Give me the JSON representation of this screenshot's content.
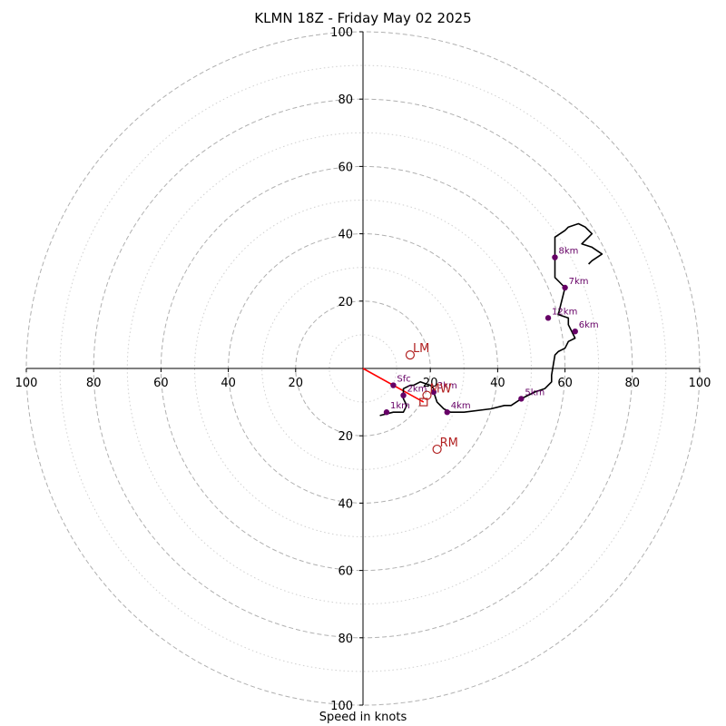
{
  "title": "KLMN 18Z - Friday May 02 2025",
  "caption": "Speed in knots",
  "chart_data": {
    "type": "hodograph",
    "units": "knots",
    "range": 100,
    "solid_rings": [
      20,
      40,
      60,
      80,
      100
    ],
    "dotted_rings": [
      10,
      30,
      50,
      70,
      90
    ],
    "tick_labels": [
      "20",
      "40",
      "60",
      "80",
      "100"
    ],
    "colors": {
      "trace": "#000000",
      "markers": "#660066",
      "motion": "#b22222",
      "shear": "#ff0000",
      "grid": "#b0b0b0"
    },
    "trace": [
      [
        5,
        -14
      ],
      [
        9,
        -13
      ],
      [
        12,
        -13
      ],
      [
        13,
        -11
      ],
      [
        12,
        -9
      ],
      [
        12,
        -6
      ],
      [
        14,
        -5
      ],
      [
        15,
        -5
      ],
      [
        17,
        -4
      ],
      [
        20,
        -5
      ],
      [
        21,
        -6
      ],
      [
        21,
        -7
      ],
      [
        22,
        -10
      ],
      [
        24,
        -12
      ],
      [
        26,
        -13
      ],
      [
        30,
        -13
      ],
      [
        38,
        -12
      ],
      [
        42,
        -11
      ],
      [
        44,
        -11
      ],
      [
        47,
        -9
      ],
      [
        51,
        -7
      ],
      [
        54,
        -6
      ],
      [
        56,
        -4
      ],
      [
        56,
        -2
      ],
      [
        57,
        4
      ],
      [
        58,
        5
      ],
      [
        60,
        6
      ],
      [
        61,
        8
      ],
      [
        63,
        9
      ],
      [
        61,
        13
      ],
      [
        61,
        15
      ],
      [
        58,
        16
      ],
      [
        60,
        24
      ],
      [
        58,
        26
      ],
      [
        57,
        27
      ],
      [
        57,
        32
      ],
      [
        57,
        39
      ],
      [
        60,
        41
      ],
      [
        61,
        42
      ],
      [
        64,
        43
      ],
      [
        66,
        42
      ],
      [
        68,
        40
      ],
      [
        67,
        39
      ],
      [
        65,
        37
      ],
      [
        68,
        36
      ],
      [
        71,
        34
      ],
      [
        68,
        32
      ],
      [
        67,
        31
      ]
    ],
    "height_markers": [
      {
        "label": "Sfc",
        "u": 9,
        "v": -5
      },
      {
        "label": "1km",
        "u": 7,
        "v": -13
      },
      {
        "label": "2km",
        "u": 12,
        "v": -8
      },
      {
        "label": "3km",
        "u": 21,
        "v": -7
      },
      {
        "label": "4km",
        "u": 25,
        "v": -13
      },
      {
        "label": "5km",
        "u": 47,
        "v": -9
      },
      {
        "label": "6km",
        "u": 63,
        "v": 11
      },
      {
        "label": "7km",
        "u": 60,
        "v": 24
      },
      {
        "label": "8km",
        "u": 57,
        "v": 33
      },
      {
        "label": "12km",
        "u": 55,
        "v": 15
      }
    ],
    "storm_motions": [
      {
        "label": "LM",
        "u": 14,
        "v": 4
      },
      {
        "label": "RM",
        "u": 22,
        "v": -24
      },
      {
        "label": "MW",
        "u": 19,
        "v": -8
      },
      {
        "label": "DTM",
        "u": 18,
        "v": -10
      }
    ],
    "shear_vector": {
      "from": [
        0,
        0
      ],
      "to": [
        18,
        -10
      ]
    }
  }
}
